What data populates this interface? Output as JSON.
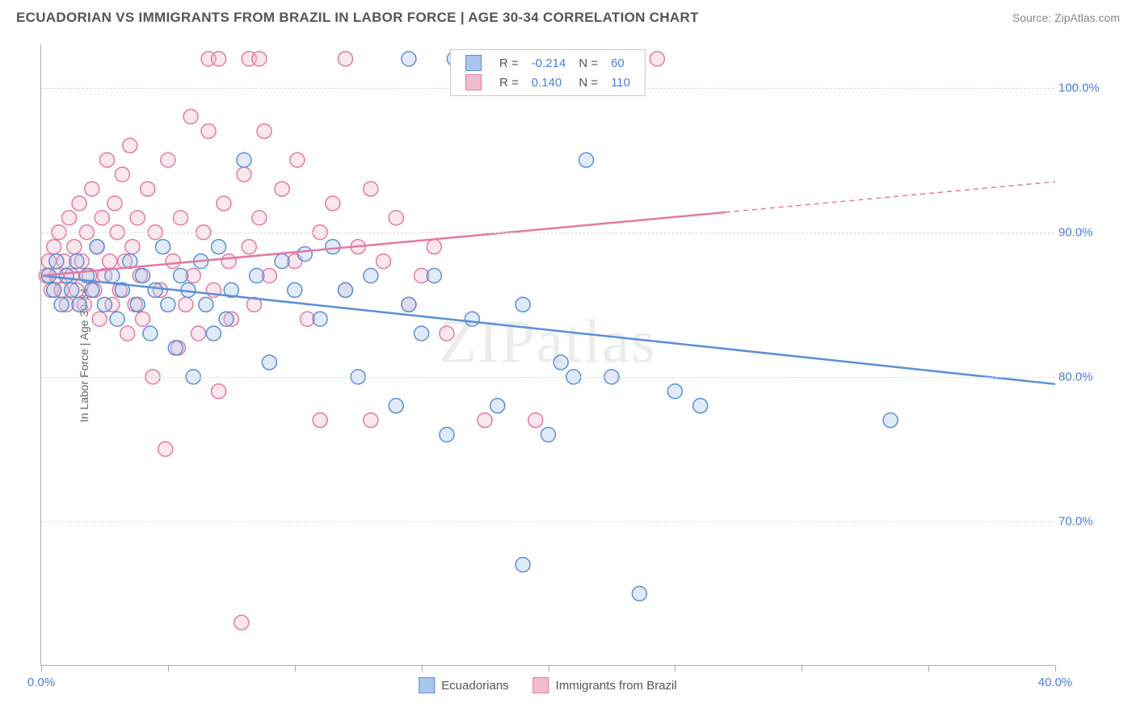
{
  "header": {
    "title": "ECUADORIAN VS IMMIGRANTS FROM BRAZIL IN LABOR FORCE | AGE 30-34 CORRELATION CHART",
    "source": "Source: ZipAtlas.com"
  },
  "chart": {
    "type": "scatter",
    "y_axis_label": "In Labor Force | Age 30-34",
    "xlim": [
      0,
      40
    ],
    "ylim": [
      60,
      103
    ],
    "x_ticks": [
      0,
      5,
      10,
      15,
      20,
      25,
      30,
      35,
      40
    ],
    "x_tick_labels": {
      "0": "0.0%",
      "40": "40.0%"
    },
    "y_ticks": [
      70,
      80,
      90,
      100
    ],
    "y_tick_labels": {
      "70": "70.0%",
      "80": "80.0%",
      "90": "90.0%",
      "100": "100.0%"
    },
    "gridline_color": "#dddddd",
    "axis_color": "#aaaaaa",
    "tick_label_color": "#4a7dd8",
    "background_color": "#ffffff",
    "marker_radius": 9,
    "marker_stroke_width": 1.5,
    "marker_fill_opacity": 0.35,
    "trend_line_width": 2.5,
    "watermark": "ZIPatlas",
    "series": [
      {
        "name": "Ecuadorians",
        "color_fill": "#a9c6ec",
        "color_stroke": "#5b8fd6",
        "R": "-0.214",
        "N": "60",
        "trend": {
          "x1": 0,
          "y1": 87,
          "x2": 40,
          "y2": 79.5,
          "dash_from_x": null
        },
        "points": [
          [
            0.3,
            87
          ],
          [
            0.5,
            86
          ],
          [
            0.6,
            88
          ],
          [
            0.8,
            85
          ],
          [
            1.0,
            87
          ],
          [
            1.2,
            86
          ],
          [
            1.4,
            88
          ],
          [
            1.5,
            85
          ],
          [
            1.8,
            87
          ],
          [
            2.0,
            86
          ],
          [
            2.2,
            89
          ],
          [
            2.5,
            85
          ],
          [
            2.8,
            87
          ],
          [
            3.0,
            84
          ],
          [
            3.2,
            86
          ],
          [
            3.5,
            88
          ],
          [
            3.8,
            85
          ],
          [
            4.0,
            87
          ],
          [
            4.3,
            83
          ],
          [
            4.5,
            86
          ],
          [
            4.8,
            89
          ],
          [
            5.0,
            85
          ],
          [
            5.3,
            82
          ],
          [
            5.5,
            87
          ],
          [
            5.8,
            86
          ],
          [
            6.0,
            80
          ],
          [
            6.3,
            88
          ],
          [
            6.5,
            85
          ],
          [
            6.8,
            83
          ],
          [
            7.0,
            89
          ],
          [
            7.3,
            84
          ],
          [
            7.5,
            86
          ],
          [
            8.0,
            95
          ],
          [
            8.5,
            87
          ],
          [
            9.0,
            81
          ],
          [
            9.5,
            88
          ],
          [
            10.0,
            86
          ],
          [
            10.4,
            88.5
          ],
          [
            11.0,
            84
          ],
          [
            11.5,
            89
          ],
          [
            12.0,
            86
          ],
          [
            12.5,
            80
          ],
          [
            13.0,
            87
          ],
          [
            14.0,
            78
          ],
          [
            14.5,
            85
          ],
          [
            14.5,
            102
          ],
          [
            15.0,
            83
          ],
          [
            15.5,
            87
          ],
          [
            16.0,
            76
          ],
          [
            16.3,
            102
          ],
          [
            17.0,
            84
          ],
          [
            18.0,
            78
          ],
          [
            18.2,
            102
          ],
          [
            19.0,
            85
          ],
          [
            19.0,
            67
          ],
          [
            20.0,
            76
          ],
          [
            20.5,
            81
          ],
          [
            20.4,
            102
          ],
          [
            21.0,
            80
          ],
          [
            21.5,
            95
          ],
          [
            22.5,
            80
          ],
          [
            23.6,
            65
          ],
          [
            25.0,
            79
          ],
          [
            26.0,
            78
          ],
          [
            33.5,
            77
          ]
        ]
      },
      {
        "name": "Immigrants from Brazil",
        "color_fill": "#f3bccd",
        "color_stroke": "#e37aa0",
        "R": "0.140",
        "N": "110",
        "trend": {
          "x1": 0,
          "y1": 87,
          "x2": 40,
          "y2": 93.5,
          "dash_from_x": 27
        },
        "points": [
          [
            0.2,
            87
          ],
          [
            0.3,
            88
          ],
          [
            0.4,
            86
          ],
          [
            0.5,
            89
          ],
          [
            0.6,
            87
          ],
          [
            0.7,
            90
          ],
          [
            0.8,
            86
          ],
          [
            0.9,
            88
          ],
          [
            1.0,
            85
          ],
          [
            1.1,
            91
          ],
          [
            1.2,
            87
          ],
          [
            1.3,
            89
          ],
          [
            1.4,
            86
          ],
          [
            1.5,
            92
          ],
          [
            1.6,
            88
          ],
          [
            1.7,
            85
          ],
          [
            1.8,
            90
          ],
          [
            1.9,
            87
          ],
          [
            2.0,
            93
          ],
          [
            2.1,
            86
          ],
          [
            2.2,
            89
          ],
          [
            2.3,
            84
          ],
          [
            2.4,
            91
          ],
          [
            2.5,
            87
          ],
          [
            2.6,
            95
          ],
          [
            2.7,
            88
          ],
          [
            2.8,
            85
          ],
          [
            2.9,
            92
          ],
          [
            3.0,
            90
          ],
          [
            3.1,
            86
          ],
          [
            3.2,
            94
          ],
          [
            3.3,
            88
          ],
          [
            3.4,
            83
          ],
          [
            3.5,
            96
          ],
          [
            3.6,
            89
          ],
          [
            3.7,
            85
          ],
          [
            3.8,
            91
          ],
          [
            3.9,
            87
          ],
          [
            4.0,
            84
          ],
          [
            4.2,
            93
          ],
          [
            4.4,
            80
          ],
          [
            4.5,
            90
          ],
          [
            4.7,
            86
          ],
          [
            4.9,
            75
          ],
          [
            5.0,
            95
          ],
          [
            5.2,
            88
          ],
          [
            5.4,
            82
          ],
          [
            5.5,
            91
          ],
          [
            5.7,
            85
          ],
          [
            5.9,
            98
          ],
          [
            6.0,
            87
          ],
          [
            6.2,
            83
          ],
          [
            6.4,
            90
          ],
          [
            6.6,
            97
          ],
          [
            6.8,
            86
          ],
          [
            6.6,
            102
          ],
          [
            7.0,
            79
          ],
          [
            7.2,
            92
          ],
          [
            7.4,
            88
          ],
          [
            7.5,
            84
          ],
          [
            7.9,
            63
          ],
          [
            8.0,
            94
          ],
          [
            7.0,
            102
          ],
          [
            8.2,
            89
          ],
          [
            8.4,
            85
          ],
          [
            8.6,
            91
          ],
          [
            8.8,
            97
          ],
          [
            8.2,
            102
          ],
          [
            9.0,
            87
          ],
          [
            9.5,
            93
          ],
          [
            10.0,
            88
          ],
          [
            8.6,
            102
          ],
          [
            10.1,
            95
          ],
          [
            10.5,
            84
          ],
          [
            11.0,
            77
          ],
          [
            11.0,
            90
          ],
          [
            11.5,
            92
          ],
          [
            12.0,
            86
          ],
          [
            12.0,
            102
          ],
          [
            12.5,
            89
          ],
          [
            13.0,
            93
          ],
          [
            13.0,
            77
          ],
          [
            13.5,
            88
          ],
          [
            14.0,
            91
          ],
          [
            14.5,
            85
          ],
          [
            15.0,
            87
          ],
          [
            15.5,
            89
          ],
          [
            16.0,
            83
          ],
          [
            17.5,
            77
          ],
          [
            19.5,
            77
          ],
          [
            24.3,
            102
          ]
        ]
      }
    ]
  },
  "legend_bottom": {
    "items": [
      {
        "label": "Ecuadorians",
        "fill": "#a9c6ec",
        "stroke": "#5b8fd6"
      },
      {
        "label": "Immigrants from Brazil",
        "fill": "#f3bccd",
        "stroke": "#e37aa0"
      }
    ]
  }
}
